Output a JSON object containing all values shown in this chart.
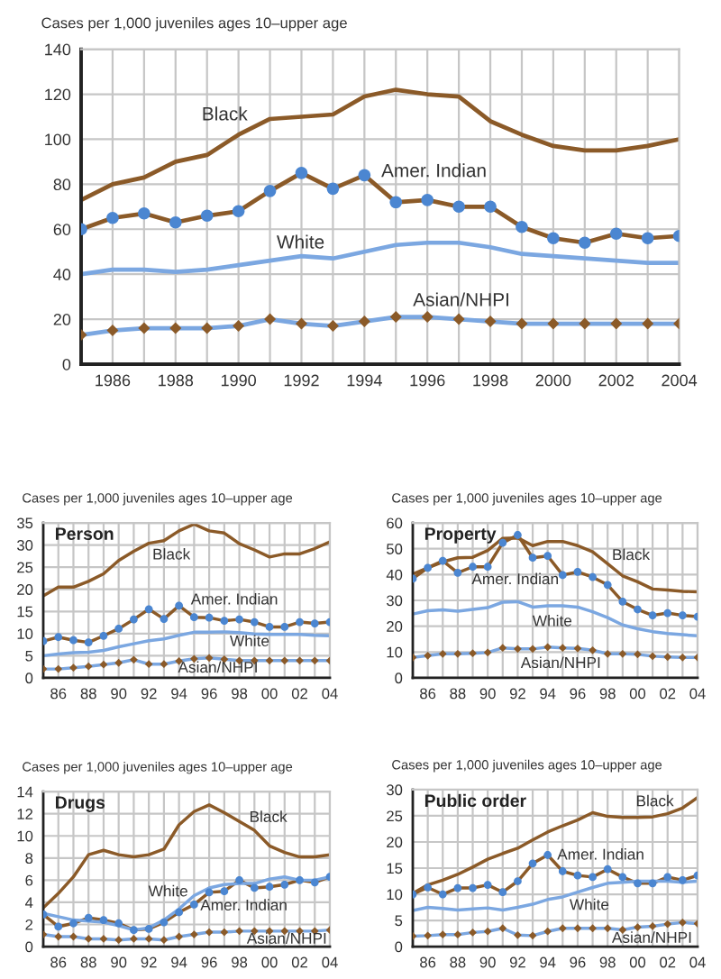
{
  "chart_data": [
    {
      "type": "line",
      "ylabel": "Cases per 1,000 juveniles ages 10–upper age",
      "x": [
        1985,
        1986,
        1987,
        1988,
        1989,
        1990,
        1991,
        1992,
        1993,
        1994,
        1995,
        1996,
        1997,
        1998,
        1999,
        2000,
        2001,
        2002,
        2003,
        2004
      ],
      "xlim": [
        1985,
        2004
      ],
      "xticks": [
        {
          "value": 1985,
          "label": null
        },
        1986,
        {
          "value": 1987,
          "label": null
        },
        1988,
        {
          "value": 1989,
          "label": null
        },
        1990,
        {
          "value": 1991,
          "label": null
        },
        1992,
        {
          "value": 1993,
          "label": null
        },
        1994,
        {
          "value": 1995,
          "label": null
        },
        1996,
        {
          "value": 1997,
          "label": null
        },
        1998,
        {
          "value": 1999,
          "label": null
        },
        2000,
        {
          "value": 2001,
          "label": null
        },
        2002,
        {
          "value": 2003,
          "label": null
        },
        2004
      ],
      "ylim": [
        0,
        140
      ],
      "yticks": [
        0,
        20,
        40,
        60,
        80,
        100,
        120,
        140
      ],
      "grid": true,
      "line_style": "solid",
      "series": [
        {
          "name": "Black",
          "color": "#8b5a28",
          "marker": "none",
          "values": [
            73,
            80,
            83,
            90,
            93,
            102,
            109,
            110,
            111,
            119,
            122,
            120,
            119,
            108,
            102,
            97,
            95,
            95,
            97,
            100
          ]
        },
        {
          "name": "Amer. Indian",
          "color": "#8b5a28",
          "marker": "circle",
          "colors": [
            "#4b86d1",
            "#4b86d1",
            "#4b86d1",
            "#4b86d1",
            "#4b86d1",
            "#4b86d1",
            "#4b86d1",
            "#4b86d1",
            "#4b86d1",
            "#4b86d1",
            "#4b86d1",
            "#4b86d1",
            "#4b86d1",
            "#4b86d1",
            "#4b86d1",
            "#4b86d1",
            "#4b86d1",
            "#4b86d1",
            "#4b86d1",
            "#4b86d1"
          ],
          "values": [
            60,
            65,
            67,
            63,
            66,
            68,
            77,
            85,
            78,
            84,
            72,
            73,
            70,
            70,
            61,
            56,
            54,
            58,
            56,
            57
          ]
        },
        {
          "name": "White",
          "color": "#7ba7e1",
          "marker": "none",
          "values": [
            40,
            42,
            42,
            41,
            42,
            44,
            46,
            48,
            47,
            50,
            53,
            54,
            54,
            52,
            49,
            48,
            47,
            46,
            45,
            45
          ]
        },
        {
          "name": "Asian/NHPI",
          "color": "#7ba7e1",
          "marker": "diamond",
          "colors": [
            "#8b5a28",
            "#8b5a28",
            "#8b5a28",
            "#8b5a28",
            "#8b5a28",
            "#8b5a28",
            "#8b5a28",
            "#8b5a28",
            "#8b5a28",
            "#8b5a28",
            "#8b5a28",
            "#8b5a28",
            "#8b5a28",
            "#8b5a28",
            "#8b5a28",
            "#8b5a28",
            "#8b5a28",
            "#8b5a28",
            "#8b5a28",
            "#8b5a28"
          ],
          "values": [
            13,
            15,
            16,
            16,
            16,
            17,
            20,
            18,
            17,
            19,
            21,
            21,
            20,
            19,
            18,
            18,
            18,
            18,
            18,
            18
          ]
        }
      ]
    },
    {
      "type": "line",
      "title": "Person",
      "ylabel": "Cases per 1,000 juveniles ages 10–upper age",
      "x": [
        1985,
        1986,
        1987,
        1988,
        1989,
        1990,
        1991,
        1992,
        1993,
        1994,
        1995,
        1996,
        1997,
        1998,
        1999,
        2000,
        2001,
        2002,
        2003,
        2004
      ],
      "xlim": [
        1985,
        2004
      ],
      "xticks": [
        {
          "value": 1985,
          "label": null
        },
        {
          "value": 1986,
          "label": "86"
        },
        {
          "value": 1987,
          "label": null
        },
        {
          "value": 1988,
          "label": "88"
        },
        {
          "value": 1989,
          "label": null
        },
        {
          "value": 1990,
          "label": "90"
        },
        {
          "value": 1991,
          "label": null
        },
        {
          "value": 1992,
          "label": "92"
        },
        {
          "value": 1993,
          "label": null
        },
        {
          "value": 1994,
          "label": "94"
        },
        {
          "value": 1995,
          "label": null
        },
        {
          "value": 1996,
          "label": "96"
        },
        {
          "value": 1997,
          "label": null
        },
        {
          "value": 1998,
          "label": "98"
        },
        {
          "value": 1999,
          "label": null
        },
        {
          "value": 2000,
          "label": "00"
        },
        {
          "value": 2001,
          "label": null
        },
        {
          "value": 2002,
          "label": "02"
        },
        {
          "value": 2003,
          "label": null
        },
        {
          "value": 2004,
          "label": "04"
        }
      ],
      "ylim": [
        0,
        35
      ],
      "yticks": [
        0,
        5,
        10,
        15,
        20,
        25,
        30,
        35
      ],
      "grid": true,
      "line_style": "solid",
      "series": [
        {
          "name": "Black",
          "color": "#8b5a28",
          "marker": "none",
          "values": [
            18.5,
            20.5,
            20.5,
            21.8,
            23.5,
            26.5,
            28.6,
            30.4,
            31.0,
            33.2,
            34.7,
            33.2,
            32.7,
            30.3,
            28.9,
            27.3,
            28.0,
            28.0,
            29.2,
            30.7
          ]
        },
        {
          "name": "Amer. Indian",
          "color": "#8b5a28",
          "marker": "circle",
          "colors": [
            "#4b86d1",
            "#4b86d1",
            "#4b86d1",
            "#4b86d1",
            "#4b86d1",
            "#4b86d1",
            "#4b86d1",
            "#4b86d1",
            "#4b86d1",
            "#4b86d1",
            "#4b86d1",
            "#4b86d1",
            "#4b86d1",
            "#4b86d1",
            "#4b86d1",
            "#4b86d1",
            "#4b86d1",
            "#4b86d1",
            "#4b86d1",
            "#4b86d1"
          ],
          "values": [
            8.3,
            9.2,
            8.5,
            8.0,
            9.5,
            11.1,
            13.2,
            15.5,
            13.3,
            16.3,
            13.7,
            13.6,
            12.9,
            13.2,
            12.6,
            11.5,
            11.5,
            12.6,
            12.3,
            12.6
          ]
        },
        {
          "name": "White",
          "color": "#7ba7e1",
          "marker": "none",
          "values": [
            5.0,
            5.4,
            5.7,
            5.8,
            6.2,
            7.0,
            7.7,
            8.4,
            8.8,
            9.6,
            10.3,
            10.3,
            10.4,
            10.2,
            9.9,
            9.8,
            9.8,
            9.8,
            9.6,
            9.5
          ]
        },
        {
          "name": "Asian/NHPI",
          "color": "#7ba7e1",
          "marker": "diamond",
          "colors": [
            "#8b5a28",
            "#8b5a28",
            "#8b5a28",
            "#8b5a28",
            "#8b5a28",
            "#8b5a28",
            "#8b5a28",
            "#8b5a28",
            "#8b5a28",
            "#8b5a28",
            "#8b5a28",
            "#8b5a28",
            "#8b5a28",
            "#8b5a28",
            "#8b5a28",
            "#8b5a28",
            "#8b5a28",
            "#8b5a28",
            "#8b5a28",
            "#8b5a28"
          ],
          "values": [
            2.0,
            2.0,
            2.3,
            2.6,
            3.0,
            3.4,
            4.1,
            3.1,
            3.1,
            3.8,
            4.3,
            4.5,
            4.2,
            3.9,
            3.9,
            3.9,
            3.9,
            3.9,
            3.9,
            3.9
          ]
        }
      ]
    },
    {
      "type": "line",
      "title": "Property",
      "ylabel": "Cases per 1,000 juveniles ages 10–upper age",
      "x": [
        1985,
        1986,
        1987,
        1988,
        1989,
        1990,
        1991,
        1992,
        1993,
        1994,
        1995,
        1996,
        1997,
        1998,
        1999,
        2000,
        2001,
        2002,
        2003,
        2004
      ],
      "xlim": [
        1985,
        2004
      ],
      "xticks": [
        {
          "value": 1985,
          "label": null
        },
        {
          "value": 1986,
          "label": "86"
        },
        {
          "value": 1987,
          "label": null
        },
        {
          "value": 1988,
          "label": "88"
        },
        {
          "value": 1989,
          "label": null
        },
        {
          "value": 1990,
          "label": "90"
        },
        {
          "value": 1991,
          "label": null
        },
        {
          "value": 1992,
          "label": "92"
        },
        {
          "value": 1993,
          "label": null
        },
        {
          "value": 1994,
          "label": "94"
        },
        {
          "value": 1995,
          "label": null
        },
        {
          "value": 1996,
          "label": "96"
        },
        {
          "value": 1997,
          "label": null
        },
        {
          "value": 1998,
          "label": "98"
        },
        {
          "value": 1999,
          "label": null
        },
        {
          "value": 2000,
          "label": "00"
        },
        {
          "value": 2001,
          "label": null
        },
        {
          "value": 2002,
          "label": "02"
        },
        {
          "value": 2003,
          "label": null
        },
        {
          "value": 2004,
          "label": "04"
        }
      ],
      "ylim": [
        0,
        60
      ],
      "yticks": [
        0,
        10,
        20,
        30,
        40,
        50,
        60
      ],
      "grid": true,
      "line_style": "solid",
      "series": [
        {
          "name": "Black",
          "color": "#8b5a28",
          "marker": "none",
          "values": [
            40.2,
            42.6,
            44.9,
            46.5,
            46.7,
            49.3,
            54.0,
            54.2,
            51.2,
            52.8,
            52.8,
            51.2,
            48.8,
            44.2,
            39.5,
            37.2,
            34.4,
            34.0,
            33.5,
            33.3
          ]
        },
        {
          "name": "Amer. Indian",
          "color": "#8b5a28",
          "marker": "circle",
          "colors": [
            "#4b86d1",
            "#4b86d1",
            "#4b86d1",
            "#4b86d1",
            "#4b86d1",
            "#4b86d1",
            "#4b86d1",
            "#4b86d1",
            "#4b86d1",
            "#4b86d1",
            "#4b86d1",
            "#4b86d1",
            "#4b86d1",
            "#4b86d1",
            "#4b86d1",
            "#4b86d1",
            "#4b86d1",
            "#4b86d1",
            "#4b86d1",
            "#4b86d1"
          ],
          "values": [
            38.4,
            42.6,
            45.3,
            40.7,
            43.0,
            43.0,
            52.3,
            55.3,
            46.5,
            47.2,
            39.8,
            41.0,
            39.0,
            36.0,
            29.5,
            26.5,
            24.2,
            25.1,
            24.2,
            23.7
          ]
        },
        {
          "name": "White",
          "color": "#7ba7e1",
          "marker": "none",
          "values": [
            24.7,
            26.0,
            26.3,
            25.8,
            26.5,
            27.2,
            29.3,
            29.5,
            27.4,
            27.9,
            27.9,
            27.4,
            25.6,
            23.3,
            20.5,
            19.0,
            17.9,
            17.2,
            16.7,
            16.3
          ]
        },
        {
          "name": "Asian/NHPI",
          "color": "#7ba7e1",
          "marker": "diamond",
          "colors": [
            "#8b5a28",
            "#8b5a28",
            "#8b5a28",
            "#8b5a28",
            "#8b5a28",
            "#8b5a28",
            "#8b5a28",
            "#8b5a28",
            "#8b5a28",
            "#8b5a28",
            "#8b5a28",
            "#8b5a28",
            "#8b5a28",
            "#8b5a28",
            "#8b5a28",
            "#8b5a28",
            "#8b5a28",
            "#8b5a28",
            "#8b5a28",
            "#8b5a28"
          ],
          "values": [
            7.9,
            8.6,
            9.3,
            9.3,
            9.5,
            9.8,
            11.6,
            11.2,
            11.2,
            11.9,
            11.6,
            11.4,
            10.7,
            9.3,
            9.3,
            9.1,
            8.4,
            8.1,
            7.9,
            7.9
          ]
        }
      ]
    },
    {
      "type": "line",
      "title": "Drugs",
      "ylabel": "Cases per 1,000 juveniles ages 10–upper age",
      "x": [
        1985,
        1986,
        1987,
        1988,
        1989,
        1990,
        1991,
        1992,
        1993,
        1994,
        1995,
        1996,
        1997,
        1998,
        1999,
        2000,
        2001,
        2002,
        2003,
        2004
      ],
      "xlim": [
        1985,
        2004
      ],
      "xticks": [
        {
          "value": 1985,
          "label": null
        },
        {
          "value": 1986,
          "label": "86"
        },
        {
          "value": 1987,
          "label": null
        },
        {
          "value": 1988,
          "label": "88"
        },
        {
          "value": 1989,
          "label": null
        },
        {
          "value": 1990,
          "label": "90"
        },
        {
          "value": 1991,
          "label": null
        },
        {
          "value": 1992,
          "label": "92"
        },
        {
          "value": 1993,
          "label": null
        },
        {
          "value": 1994,
          "label": "94"
        },
        {
          "value": 1995,
          "label": null
        },
        {
          "value": 1996,
          "label": "96"
        },
        {
          "value": 1997,
          "label": null
        },
        {
          "value": 1998,
          "label": "98"
        },
        {
          "value": 1999,
          "label": null
        },
        {
          "value": 2000,
          "label": "00"
        },
        {
          "value": 2001,
          "label": null
        },
        {
          "value": 2002,
          "label": "02"
        },
        {
          "value": 2003,
          "label": null
        },
        {
          "value": 2004,
          "label": "04"
        }
      ],
      "ylim": [
        0,
        14
      ],
      "yticks": [
        0,
        2,
        4,
        6,
        8,
        10,
        12,
        14
      ],
      "grid": true,
      "line_style": "solid",
      "series": [
        {
          "name": "Black",
          "color": "#8b5a28",
          "marker": "none",
          "values": [
            3.5,
            4.8,
            6.3,
            8.3,
            8.7,
            8.3,
            8.1,
            8.3,
            8.8,
            11.0,
            12.2,
            12.8,
            12.1,
            11.3,
            10.5,
            9.1,
            8.5,
            8.1,
            8.1,
            8.3
          ]
        },
        {
          "name": "Amer. Indian",
          "color": "#8b5a28",
          "marker": "circle",
          "colors": [
            "#4b86d1",
            "#4b86d1",
            "#4b86d1",
            "#4b86d1",
            "#4b86d1",
            "#4b86d1",
            "#4b86d1",
            "#4b86d1",
            "#4b86d1",
            "#4b86d1",
            "#4b86d1",
            "#4b86d1",
            "#4b86d1",
            "#4b86d1",
            "#4b86d1",
            "#4b86d1",
            "#4b86d1",
            "#4b86d1",
            "#4b86d1",
            "#4b86d1"
          ],
          "values": [
            2.9,
            1.8,
            2.1,
            2.6,
            2.4,
            2.1,
            1.5,
            1.6,
            2.2,
            3.1,
            3.8,
            4.9,
            5.0,
            6.0,
            5.3,
            5.4,
            5.6,
            6.0,
            5.8,
            6.3
          ]
        },
        {
          "name": "White",
          "color": "#7ba7e1",
          "marker": "none",
          "values": [
            3.0,
            2.7,
            2.4,
            2.3,
            2.2,
            1.9,
            1.5,
            1.7,
            2.4,
            3.4,
            4.6,
            5.3,
            5.6,
            5.7,
            5.7,
            6.1,
            6.3,
            6.0,
            6.0,
            6.3
          ]
        },
        {
          "name": "Asian/NHPI",
          "color": "#7ba7e1",
          "marker": "diamond",
          "colors": [
            "#8b5a28",
            "#8b5a28",
            "#8b5a28",
            "#8b5a28",
            "#8b5a28",
            "#8b5a28",
            "#8b5a28",
            "#8b5a28",
            "#8b5a28",
            "#8b5a28",
            "#8b5a28",
            "#8b5a28",
            "#8b5a28",
            "#8b5a28",
            "#8b5a28",
            "#8b5a28",
            "#8b5a28",
            "#8b5a28",
            "#8b5a28",
            "#8b5a28"
          ],
          "values": [
            1.1,
            0.9,
            0.9,
            0.7,
            0.7,
            0.6,
            0.7,
            0.7,
            0.6,
            0.9,
            1.1,
            1.3,
            1.3,
            1.4,
            1.4,
            1.4,
            1.4,
            1.4,
            1.4,
            1.5
          ]
        }
      ]
    },
    {
      "type": "line",
      "title": "Public order",
      "ylabel": "Cases per 1,000 juveniles ages 10–upper age",
      "x": [
        1985,
        1986,
        1987,
        1988,
        1989,
        1990,
        1991,
        1992,
        1993,
        1994,
        1995,
        1996,
        1997,
        1998,
        1999,
        2000,
        2001,
        2002,
        2003,
        2004
      ],
      "xlim": [
        1985,
        2004
      ],
      "xticks": [
        {
          "value": 1985,
          "label": null
        },
        {
          "value": 1986,
          "label": "86"
        },
        {
          "value": 1987,
          "label": null
        },
        {
          "value": 1988,
          "label": "88"
        },
        {
          "value": 1989,
          "label": null
        },
        {
          "value": 1990,
          "label": "90"
        },
        {
          "value": 1991,
          "label": null
        },
        {
          "value": 1992,
          "label": "92"
        },
        {
          "value": 1993,
          "label": null
        },
        {
          "value": 1994,
          "label": "94"
        },
        {
          "value": 1995,
          "label": null
        },
        {
          "value": 1996,
          "label": "96"
        },
        {
          "value": 1997,
          "label": null
        },
        {
          "value": 1998,
          "label": "98"
        },
        {
          "value": 1999,
          "label": null
        },
        {
          "value": 2000,
          "label": "00"
        },
        {
          "value": 2001,
          "label": null
        },
        {
          "value": 2002,
          "label": "02"
        },
        {
          "value": 2003,
          "label": null
        },
        {
          "value": 2004,
          "label": "04"
        }
      ],
      "ylim": [
        0,
        30
      ],
      "yticks": [
        0,
        5,
        10,
        15,
        20,
        25,
        30
      ],
      "grid": true,
      "line_style": "solid",
      "series": [
        {
          "name": "Black",
          "color": "#8b5a28",
          "marker": "none",
          "values": [
            10.2,
            11.8,
            12.7,
            13.8,
            15.2,
            16.7,
            17.8,
            18.8,
            20.4,
            21.9,
            23.1,
            24.2,
            25.6,
            24.9,
            24.7,
            24.7,
            24.8,
            25.4,
            26.5,
            28.5
          ]
        },
        {
          "name": "Amer. Indian",
          "color": "#8b5a28",
          "marker": "circle",
          "colors": [
            "#4b86d1",
            "#4b86d1",
            "#4b86d1",
            "#4b86d1",
            "#4b86d1",
            "#4b86d1",
            "#4b86d1",
            "#4b86d1",
            "#4b86d1",
            "#4b86d1",
            "#4b86d1",
            "#4b86d1",
            "#4b86d1",
            "#4b86d1",
            "#4b86d1",
            "#4b86d1",
            "#4b86d1",
            "#4b86d1",
            "#4b86d1",
            "#4b86d1"
          ],
          "values": [
            10.0,
            11.3,
            10.0,
            11.2,
            11.2,
            11.8,
            10.4,
            12.5,
            15.9,
            17.5,
            14.4,
            13.6,
            13.3,
            14.8,
            13.3,
            12.1,
            12.1,
            13.3,
            12.7,
            13.6
          ]
        },
        {
          "name": "White",
          "color": "#7ba7e1",
          "marker": "none",
          "values": [
            6.9,
            7.5,
            7.3,
            7.0,
            7.2,
            7.4,
            7.0,
            7.5,
            8.1,
            9.0,
            9.5,
            10.4,
            11.3,
            12.1,
            12.3,
            12.5,
            12.5,
            12.5,
            12.3,
            12.5
          ]
        },
        {
          "name": "Asian/NHPI",
          "color": "#7ba7e1",
          "marker": "diamond",
          "colors": [
            "#8b5a28",
            "#8b5a28",
            "#8b5a28",
            "#8b5a28",
            "#8b5a28",
            "#8b5a28",
            "#8b5a28",
            "#8b5a28",
            "#8b5a28",
            "#8b5a28",
            "#8b5a28",
            "#8b5a28",
            "#8b5a28",
            "#8b5a28",
            "#8b5a28",
            "#8b5a28",
            "#8b5a28",
            "#8b5a28",
            "#8b5a28",
            "#8b5a28"
          ],
          "values": [
            2.0,
            2.1,
            2.3,
            2.3,
            2.7,
            2.9,
            3.5,
            2.2,
            2.1,
            2.9,
            3.5,
            3.5,
            3.5,
            3.5,
            3.2,
            3.7,
            3.9,
            4.3,
            4.6,
            4.4
          ]
        }
      ]
    }
  ]
}
